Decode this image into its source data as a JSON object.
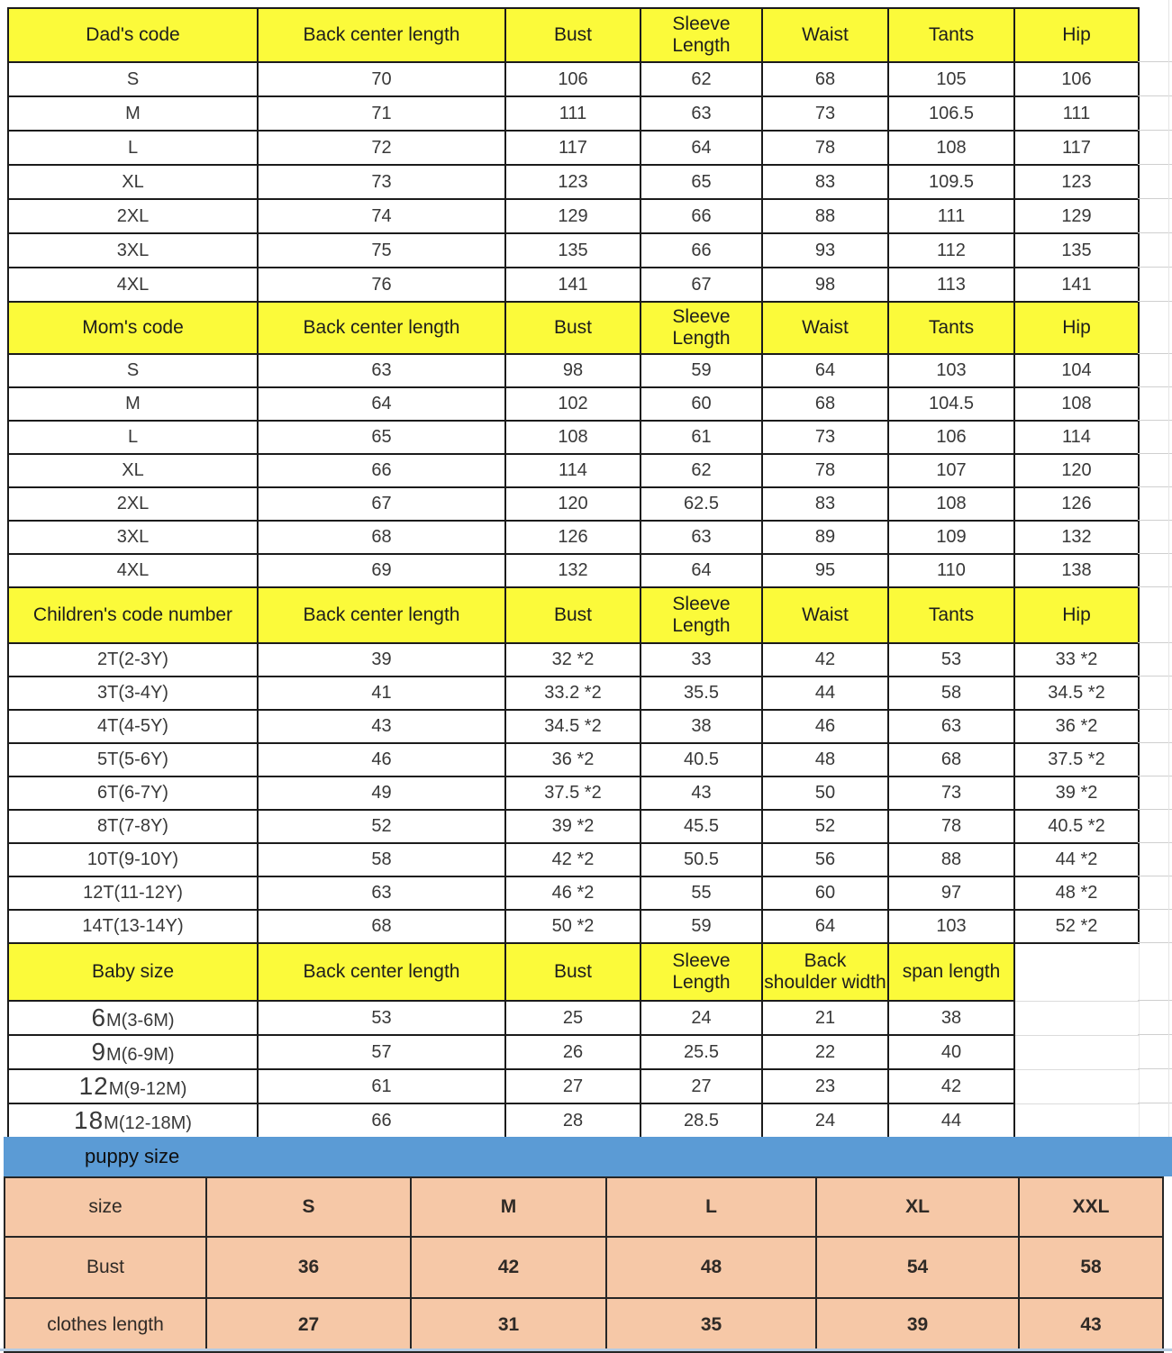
{
  "colors": {
    "header_yellow": "#fbfa3a",
    "puppy_bar_blue": "#5b9bd5",
    "puppy_table_pink": "#f6c8a7",
    "blue_text": "#4e9bd8",
    "navy_text": "#3e4a66",
    "red_text": "#fb0505",
    "dark_text": "#383838",
    "grid_line": "#cfcfcf",
    "border": "#1b1b1b"
  },
  "table": {
    "sections": [
      {
        "name": "dad",
        "header": [
          "Dad's code",
          "Back center length",
          "Bust",
          "Sleeve|Length",
          "Waist",
          "Tants",
          "Hip"
        ],
        "rows": [
          {
            "color": "dark",
            "cells": [
              "S",
              "70",
              "106",
              "62",
              "68",
              "105",
              "106"
            ]
          },
          {
            "color": "dark",
            "cells": [
              "M",
              "71",
              "111",
              "63",
              "73",
              "106.5",
              "111"
            ]
          },
          {
            "color": "dark",
            "cells": [
              "L",
              "72",
              "117",
              "64",
              "78",
              "108",
              "117"
            ]
          },
          {
            "color": "dark",
            "cells": [
              "XL",
              "73",
              "123",
              "65",
              "83",
              "109.5",
              "123"
            ]
          },
          {
            "color": "dark",
            "cells": [
              "2XL",
              "74",
              "129",
              "66",
              "88",
              "111",
              "129"
            ]
          },
          {
            "color": "dark",
            "cells": [
              "3XL",
              "75",
              "135",
              "66",
              "93",
              "112",
              "135"
            ]
          },
          {
            "color": "dark",
            "cells": [
              "4XL",
              "76",
              "141",
              "67",
              "98",
              "113",
              "141"
            ]
          }
        ]
      },
      {
        "name": "mom",
        "header": [
          "Mom's code",
          "Back center length",
          "Bust",
          "Sleeve|Length",
          "Waist",
          "Tants",
          "Hip"
        ],
        "rows": [
          {
            "color": "dark",
            "cells": [
              "S",
              "63",
              "98",
              "59",
              "64",
              "103",
              "104"
            ]
          },
          {
            "color": "dark",
            "cells": [
              "M",
              "64",
              "102",
              "60",
              "68",
              "104.5",
              "108"
            ]
          },
          {
            "color": "dark",
            "cells": [
              "L",
              "65",
              "108",
              "61",
              "73",
              "106",
              "114"
            ]
          },
          {
            "color": "dark",
            "cells": [
              "XL",
              "66",
              "114",
              "62",
              "78",
              "107",
              "120"
            ]
          },
          {
            "color": "dark",
            "cells": [
              "2XL",
              "67",
              "120",
              "62.5",
              "83",
              "108",
              "126"
            ]
          },
          {
            "color": "dark",
            "cells": [
              "3XL",
              "68",
              "126",
              "63",
              "89",
              "109",
              "132"
            ]
          },
          {
            "color": "dark",
            "cells": [
              "4XL",
              "69",
              "132",
              "64",
              "95",
              "110",
              "138"
            ]
          }
        ]
      },
      {
        "name": "children",
        "hip_column_black": true,
        "header": [
          "Children's code number",
          "Back center length",
          "Bust",
          "Sleeve|Length",
          "Waist",
          "Tants",
          "Hip"
        ],
        "rows": [
          {
            "color": "blue",
            "cells": [
              "2T(2-3Y)",
              "39",
              "32 *2",
              "33",
              "42",
              "53",
              "33 *2"
            ]
          },
          {
            "color": "blue",
            "cells": [
              "3T(3-4Y)",
              "41",
              "33.2 *2",
              "35.5",
              "44",
              "58",
              "34.5 *2"
            ]
          },
          {
            "color": "blue",
            "cells": [
              "4T(4-5Y)",
              "43",
              "34.5 *2",
              "38",
              "46",
              "63",
              "36 *2"
            ]
          },
          {
            "color": "blue",
            "cells": [
              "5T(5-6Y)",
              "46",
              "36 *2",
              "40.5",
              "48",
              "68",
              "37.5 *2"
            ]
          },
          {
            "color": "blue",
            "cells": [
              "6T(6-7Y)",
              "49",
              "37.5 *2",
              "43",
              "50",
              "73",
              "39 *2"
            ]
          },
          {
            "color": "navy",
            "cells": [
              "8T(7-8Y)",
              "52",
              "39 *2",
              "45.5",
              "52",
              "78",
              "40.5 *2"
            ]
          },
          {
            "color": "navy",
            "cells": [
              "10T(9-10Y)",
              "58",
              "42 *2",
              "50.5",
              "56",
              "88",
              "44 *2"
            ]
          },
          {
            "color": "red",
            "cells": [
              "12T(11-12Y)",
              "63",
              "46 *2",
              "55",
              "60",
              "97",
              "48 *2"
            ]
          },
          {
            "color": "red",
            "cells": [
              "14T(13-14Y)",
              "68",
              "50 *2",
              "59",
              "64",
              "103",
              "52 *2"
            ]
          }
        ]
      },
      {
        "name": "baby",
        "header": [
          "Baby size",
          "Back center length",
          "Bust",
          "Sleeve|Length",
          "Back|shoulder width",
          "span length",
          ""
        ],
        "rows": [
          {
            "color": "dark",
            "cells": [
              {
                "big": "6",
                "small": "M(3-6M)"
              },
              "53",
              "25",
              "24",
              "21",
              "38",
              null
            ]
          },
          {
            "color": "dark",
            "cells": [
              {
                "big": "9",
                "small": "M(6-9M)"
              },
              "57",
              "26",
              "25.5",
              "22",
              "40",
              null
            ]
          },
          {
            "color": "dark",
            "cells": [
              {
                "big": "12",
                "small": "M(9-12M)"
              },
              "61",
              "27",
              "27",
              "23",
              "42",
              null
            ]
          },
          {
            "color": "dark",
            "cells": [
              {
                "big": "18",
                "small": "M(12-18M)"
              },
              "66",
              "28",
              "28.5",
              "24",
              "44",
              null
            ]
          }
        ]
      }
    ]
  },
  "puppy": {
    "bar_label": "puppy size",
    "rows": [
      {
        "label": "size",
        "values": [
          "S",
          "M",
          "L",
          "XL",
          "XXL"
        ],
        "bold": true
      },
      {
        "label": "Bust",
        "values": [
          "36",
          "42",
          "48",
          "54",
          "58"
        ],
        "bold": true
      },
      {
        "label": "clothes length",
        "values": [
          "27",
          "31",
          "35",
          "39",
          "43"
        ],
        "bold": true
      }
    ]
  }
}
